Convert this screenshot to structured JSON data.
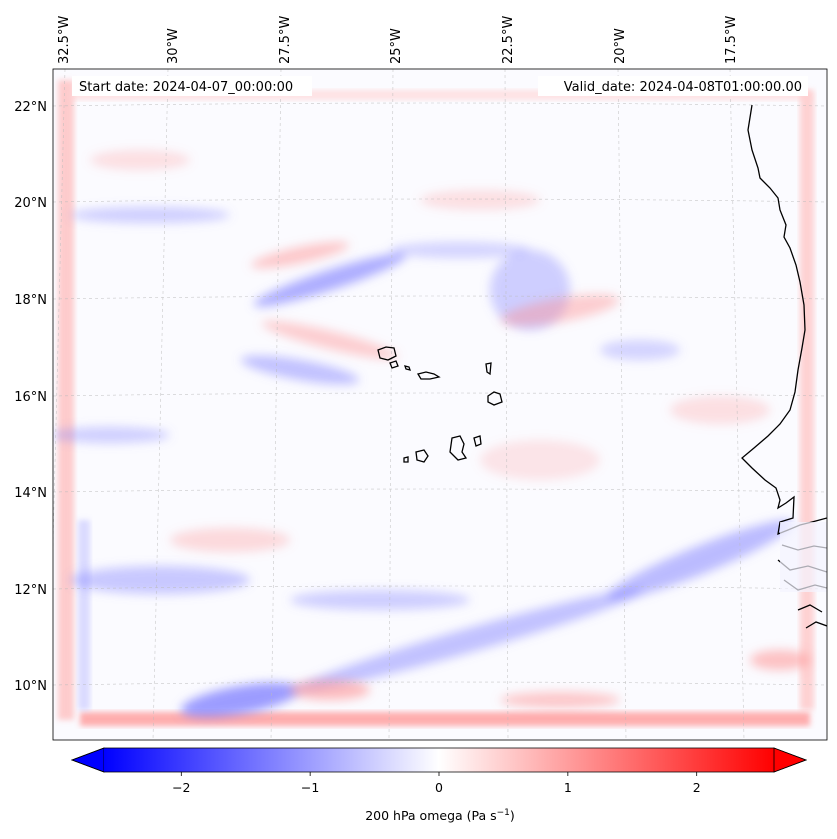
{
  "map": {
    "start_date_label": "Start date: 2024-04-07_00:00:00",
    "valid_date_label": "Valid_date: 2024-04-08T01:00:00.00",
    "lon_labels": [
      "32.5°W",
      "30°W",
      "27.5°W",
      "25°W",
      "22.5°W",
      "20°W",
      "17.5°W"
    ],
    "lat_labels": [
      "22°N",
      "20°N",
      "18°N",
      "16°N",
      "14°N",
      "12°N",
      "10°N"
    ],
    "gridlines": true
  },
  "colorbar": {
    "tick_labels": [
      "−2",
      "−1",
      "0",
      "1",
      "2"
    ],
    "tick_values": [
      -2,
      -1,
      0,
      1,
      2
    ],
    "vmin": -2.6,
    "vmax": 2.6,
    "label_main": "200 hPa omega (Pa s",
    "label_sup": "−1",
    "label_end": ")",
    "extend": "both",
    "cmap": "bwr",
    "color_low": "#0000ff",
    "color_mid": "#ffffff",
    "color_high": "#ff0000"
  }
}
